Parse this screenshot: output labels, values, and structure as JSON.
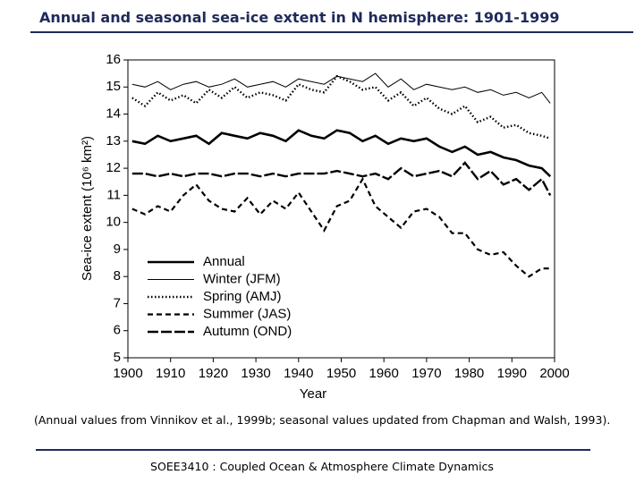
{
  "slide": {
    "title": "Annual and seasonal sea-ice extent in N hemisphere: 1901-1999",
    "caption": "(Annual values from Vinnikov et al., 1999b; seasonal values updated from Chapman and Walsh, 1993).",
    "footer": "SOEE3410 : Coupled Ocean & Atmosphere Climate Dynamics"
  },
  "chart_data": {
    "type": "line",
    "xlabel": "Year",
    "ylabel": "Sea-ice extent (10⁶ km²)",
    "xlim": [
      1900,
      2000
    ],
    "xticks": [
      1900,
      1910,
      1920,
      1930,
      1940,
      1950,
      1960,
      1970,
      1980,
      1990,
      2000
    ],
    "ylim": [
      5,
      16
    ],
    "yticks": [
      5,
      6,
      7,
      8,
      9,
      10,
      11,
      12,
      13,
      14,
      15,
      16
    ],
    "legend": "lower-left",
    "x": [
      1901,
      1904,
      1907,
      1910,
      1913,
      1916,
      1919,
      1922,
      1925,
      1928,
      1931,
      1934,
      1937,
      1940,
      1943,
      1946,
      1949,
      1952,
      1955,
      1958,
      1961,
      1964,
      1967,
      1970,
      1973,
      1976,
      1979,
      1982,
      1985,
      1988,
      1991,
      1994,
      1997,
      1999
    ],
    "series": [
      {
        "name": "Annual",
        "color": "#000000",
        "linestyle": "solid",
        "values": [
          13.0,
          12.9,
          13.2,
          13.0,
          13.1,
          13.2,
          12.9,
          13.3,
          13.2,
          13.1,
          13.3,
          13.2,
          13.0,
          13.4,
          13.2,
          13.1,
          13.4,
          13.3,
          13.0,
          13.2,
          12.9,
          13.1,
          13.0,
          13.1,
          12.8,
          12.6,
          12.8,
          12.5,
          12.6,
          12.4,
          12.3,
          12.1,
          12.0,
          11.7
        ]
      },
      {
        "name": "Winter (JFM)",
        "color": "#000000",
        "linestyle": "thin",
        "values": [
          15.1,
          15.0,
          15.2,
          14.9,
          15.1,
          15.2,
          15.0,
          15.1,
          15.3,
          15.0,
          15.1,
          15.2,
          15.0,
          15.3,
          15.2,
          15.1,
          15.4,
          15.3,
          15.2,
          15.5,
          15.0,
          15.3,
          14.9,
          15.1,
          15.0,
          14.9,
          15.0,
          14.8,
          14.9,
          14.7,
          14.8,
          14.6,
          14.8,
          14.4
        ]
      },
      {
        "name": "Spring (AMJ)",
        "color": "#000000",
        "linestyle": "dotted",
        "values": [
          14.6,
          14.3,
          14.8,
          14.5,
          14.7,
          14.4,
          14.9,
          14.6,
          15.0,
          14.6,
          14.8,
          14.7,
          14.5,
          15.1,
          14.9,
          14.8,
          15.4,
          15.2,
          14.9,
          15.0,
          14.5,
          14.8,
          14.3,
          14.6,
          14.2,
          14.0,
          14.3,
          13.7,
          13.9,
          13.5,
          13.6,
          13.3,
          13.2,
          13.1
        ]
      },
      {
        "name": "Summer (JAS)",
        "color": "#000000",
        "linestyle": "dashed",
        "values": [
          10.5,
          10.3,
          10.6,
          10.4,
          11.0,
          11.4,
          10.8,
          10.5,
          10.4,
          10.9,
          10.3,
          10.8,
          10.5,
          11.1,
          10.4,
          9.7,
          10.6,
          10.8,
          11.6,
          10.6,
          10.2,
          9.8,
          10.4,
          10.5,
          10.2,
          9.6,
          9.6,
          9.0,
          8.8,
          8.9,
          8.4,
          8.0,
          8.3,
          8.3
        ]
      },
      {
        "name": "Autumn (OND)",
        "color": "#000000",
        "linestyle": "longdash",
        "values": [
          11.8,
          11.8,
          11.7,
          11.8,
          11.7,
          11.8,
          11.8,
          11.7,
          11.8,
          11.8,
          11.7,
          11.8,
          11.7,
          11.8,
          11.8,
          11.8,
          11.9,
          11.8,
          11.7,
          11.8,
          11.6,
          12.0,
          11.7,
          11.8,
          11.9,
          11.7,
          12.2,
          11.6,
          11.9,
          11.4,
          11.6,
          11.2,
          11.6,
          11.0
        ]
      }
    ]
  }
}
